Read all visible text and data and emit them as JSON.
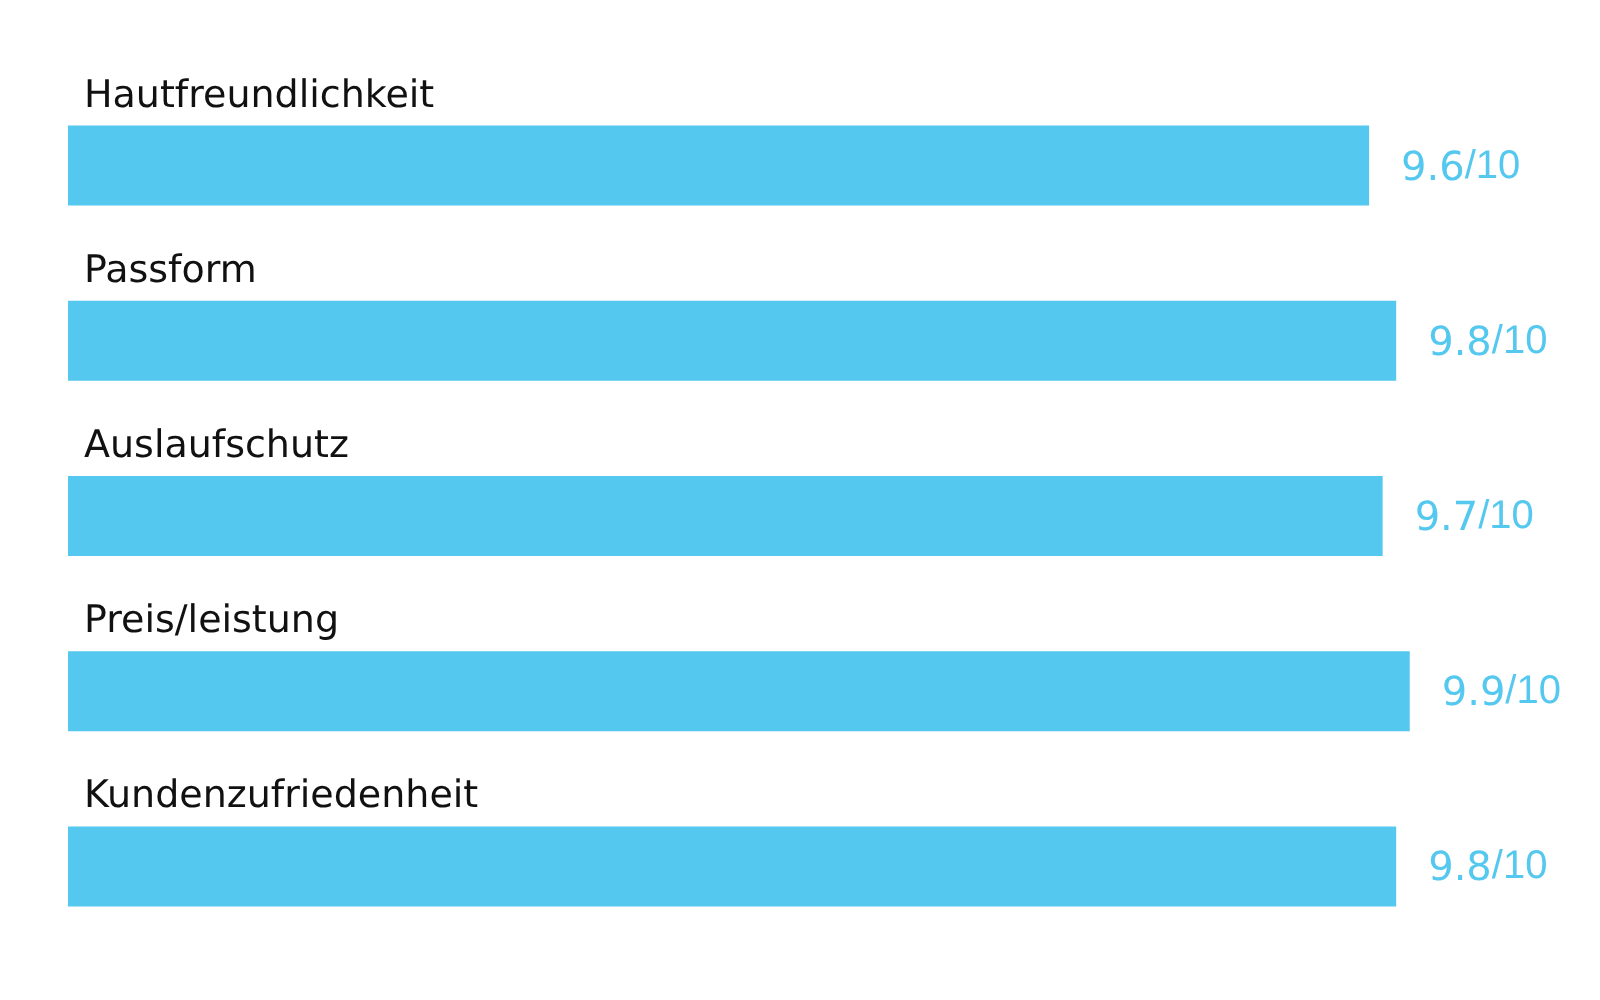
{
  "chart_data": {
    "type": "bar",
    "orientation": "horizontal",
    "categories": [
      "Hautfreundlichkeit",
      "Passform",
      "Auslaufschutz",
      "Preis/leistung",
      "Kundenzufriedenheit"
    ],
    "values": [
      9.6,
      9.8,
      9.7,
      9.9,
      9.8
    ],
    "data_labels": true,
    "annotations": [
      {
        "text": "/10",
        "x": 9.6,
        "y": "Hautfreundlichkeit"
      },
      {
        "text": "/10",
        "x": 9.8,
        "y": "Passform"
      },
      {
        "text": "/10",
        "x": 9.7,
        "y": "Auslaufschutz"
      },
      {
        "text": "/10",
        "x": 9.9,
        "y": "Preis/leistung"
      },
      {
        "text": "/10",
        "x": 9.8,
        "y": "Kundenzufriedenheit"
      }
    ],
    "color": "#55c8ef"
  }
}
